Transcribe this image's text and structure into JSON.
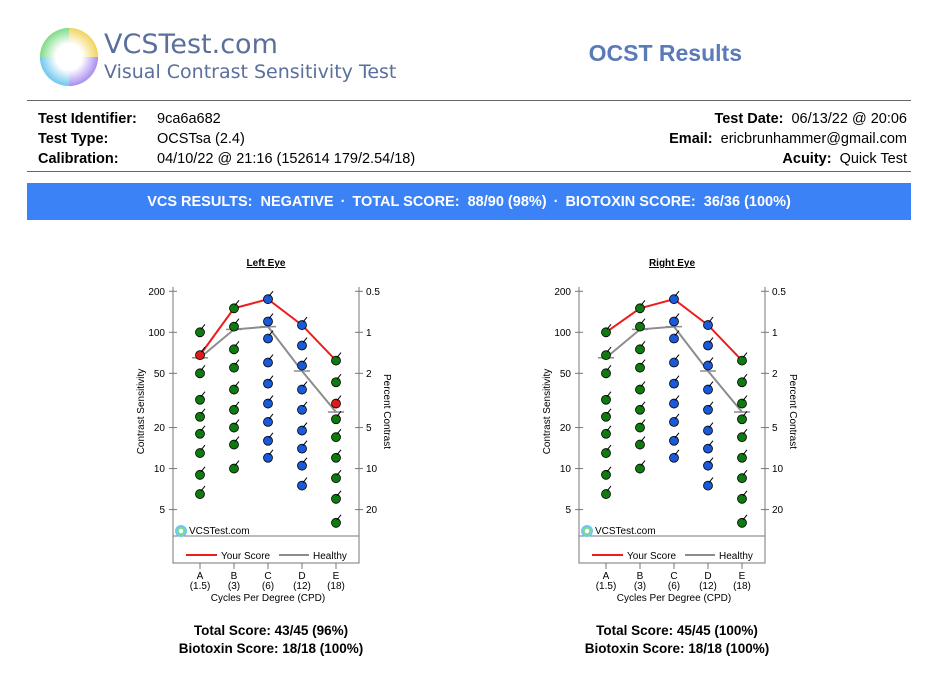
{
  "header": {
    "brand_name": "VCSTest.com",
    "brand_tagline": "Visual Contrast Sensitivity Test",
    "report_title": "OCST Results"
  },
  "info": {
    "test_identifier_label": "Test Identifier:",
    "test_identifier": "9ca6a682",
    "test_type_label": "Test Type:",
    "test_type": "OCSTsa (2.4)",
    "calibration_label": "Calibration:",
    "calibration": "04/10/22 @ 21:16 (152614 179/2.54/18)",
    "test_date_label": "Test Date:",
    "test_date": "06/13/22 @ 20:06",
    "email_label": "Email:",
    "email": "ericbrunhammer@gmail.com",
    "acuity_label": "Acuity:",
    "acuity": "Quick Test"
  },
  "banner": {
    "vcs_results": "VCS RESULTS:  NEGATIVE",
    "sep": "·",
    "total_score": "TOTAL SCORE:  88/90 (98%)",
    "biotoxin_score": "BIOTOXIN SCORE:  36/36 (100%)"
  },
  "colors": {
    "your_score": "#ee1c1c",
    "healthy": "#8c8c8c",
    "green_dot": "#0f7a0f",
    "blue_dot": "#1a5ad8",
    "red_dot": "#e01b1b",
    "banner": "#3b82f6"
  },
  "chart_data": [
    {
      "type": "line",
      "title": "Left Eye",
      "categories": [
        "A",
        "B",
        "C",
        "D",
        "E"
      ],
      "category_sublabels": [
        "(1.5)",
        "(3)",
        "(6)",
        "(12)",
        "(18)"
      ],
      "xlabel": "Cycles Per Degree (CPD)",
      "ylabel": "Contrast Sensitivity",
      "y2label": "Percent Contrast",
      "yscale": "log",
      "ylim": [
        3.2,
        215
      ],
      "yticks": [
        200,
        100,
        50,
        20,
        10,
        5
      ],
      "y2ticks": [
        "0.5",
        "1",
        "2",
        "5",
        "10",
        "20"
      ],
      "watermark": "VCSTest.com",
      "legend": [
        "Your Score",
        "Healthy"
      ],
      "series": [
        {
          "name": "Your Score",
          "values": [
            68,
            150,
            175,
            113,
            62
          ]
        },
        {
          "name": "Healthy",
          "values": [
            65,
            105,
            110,
            52,
            26
          ]
        }
      ],
      "plates": [
        {
          "x": "A",
          "values": [
            100,
            68,
            50,
            32,
            24,
            18,
            13,
            9,
            6.5
          ],
          "colors": [
            "g",
            "r",
            "g",
            "g",
            "g",
            "g",
            "g",
            "g",
            "g"
          ]
        },
        {
          "x": "B",
          "values": [
            150,
            110,
            75,
            55,
            38,
            27,
            20,
            15,
            10
          ],
          "colors": [
            "g",
            "g",
            "g",
            "g",
            "g",
            "g",
            "g",
            "g",
            "g"
          ]
        },
        {
          "x": "C",
          "values": [
            175,
            120,
            90,
            60,
            42,
            30,
            22,
            16,
            12
          ],
          "colors": [
            "b",
            "b",
            "b",
            "b",
            "b",
            "b",
            "b",
            "b",
            "b"
          ]
        },
        {
          "x": "D",
          "values": [
            113,
            80,
            57,
            38,
            27,
            19,
            14,
            10.5,
            7.5
          ],
          "colors": [
            "b",
            "b",
            "b",
            "b",
            "b",
            "b",
            "b",
            "b",
            "b"
          ]
        },
        {
          "x": "E",
          "values": [
            62,
            43,
            30,
            23,
            17,
            12,
            8.5,
            6,
            4
          ],
          "colors": [
            "g",
            "g",
            "r",
            "g",
            "g",
            "g",
            "g",
            "g",
            "g"
          ]
        }
      ],
      "total_score": "Total Score: 43/45 (96%)",
      "biotoxin_score": "Biotoxin Score: 18/18 (100%)"
    },
    {
      "type": "line",
      "title": "Right Eye",
      "categories": [
        "A",
        "B",
        "C",
        "D",
        "E"
      ],
      "category_sublabels": [
        "(1.5)",
        "(3)",
        "(6)",
        "(12)",
        "(18)"
      ],
      "xlabel": "Cycles Per Degree (CPD)",
      "ylabel": "Contrast Sensitivity",
      "y2label": "Percent Contrast",
      "yscale": "log",
      "ylim": [
        3.2,
        215
      ],
      "yticks": [
        200,
        100,
        50,
        20,
        10,
        5
      ],
      "y2ticks": [
        "0.5",
        "1",
        "2",
        "5",
        "10",
        "20"
      ],
      "watermark": "VCSTest.com",
      "legend": [
        "Your Score",
        "Healthy"
      ],
      "series": [
        {
          "name": "Your Score",
          "values": [
            100,
            150,
            175,
            113,
            62
          ]
        },
        {
          "name": "Healthy",
          "values": [
            65,
            105,
            110,
            52,
            26
          ]
        }
      ],
      "plates": [
        {
          "x": "A",
          "values": [
            100,
            68,
            50,
            32,
            24,
            18,
            13,
            9,
            6.5
          ],
          "colors": [
            "g",
            "g",
            "g",
            "g",
            "g",
            "g",
            "g",
            "g",
            "g"
          ]
        },
        {
          "x": "B",
          "values": [
            150,
            110,
            75,
            55,
            38,
            27,
            20,
            15,
            10
          ],
          "colors": [
            "g",
            "g",
            "g",
            "g",
            "g",
            "g",
            "g",
            "g",
            "g"
          ]
        },
        {
          "x": "C",
          "values": [
            175,
            120,
            90,
            60,
            42,
            30,
            22,
            16,
            12
          ],
          "colors": [
            "b",
            "b",
            "b",
            "b",
            "b",
            "b",
            "b",
            "b",
            "b"
          ]
        },
        {
          "x": "D",
          "values": [
            113,
            80,
            57,
            38,
            27,
            19,
            14,
            10.5,
            7.5
          ],
          "colors": [
            "b",
            "b",
            "b",
            "b",
            "b",
            "b",
            "b",
            "b",
            "b"
          ]
        },
        {
          "x": "E",
          "values": [
            62,
            43,
            30,
            23,
            17,
            12,
            8.5,
            6,
            4
          ],
          "colors": [
            "g",
            "g",
            "g",
            "g",
            "g",
            "g",
            "g",
            "g",
            "g"
          ]
        }
      ],
      "total_score": "Total Score: 45/45 (100%)",
      "biotoxin_score": "Biotoxin Score: 18/18 (100%)"
    }
  ]
}
